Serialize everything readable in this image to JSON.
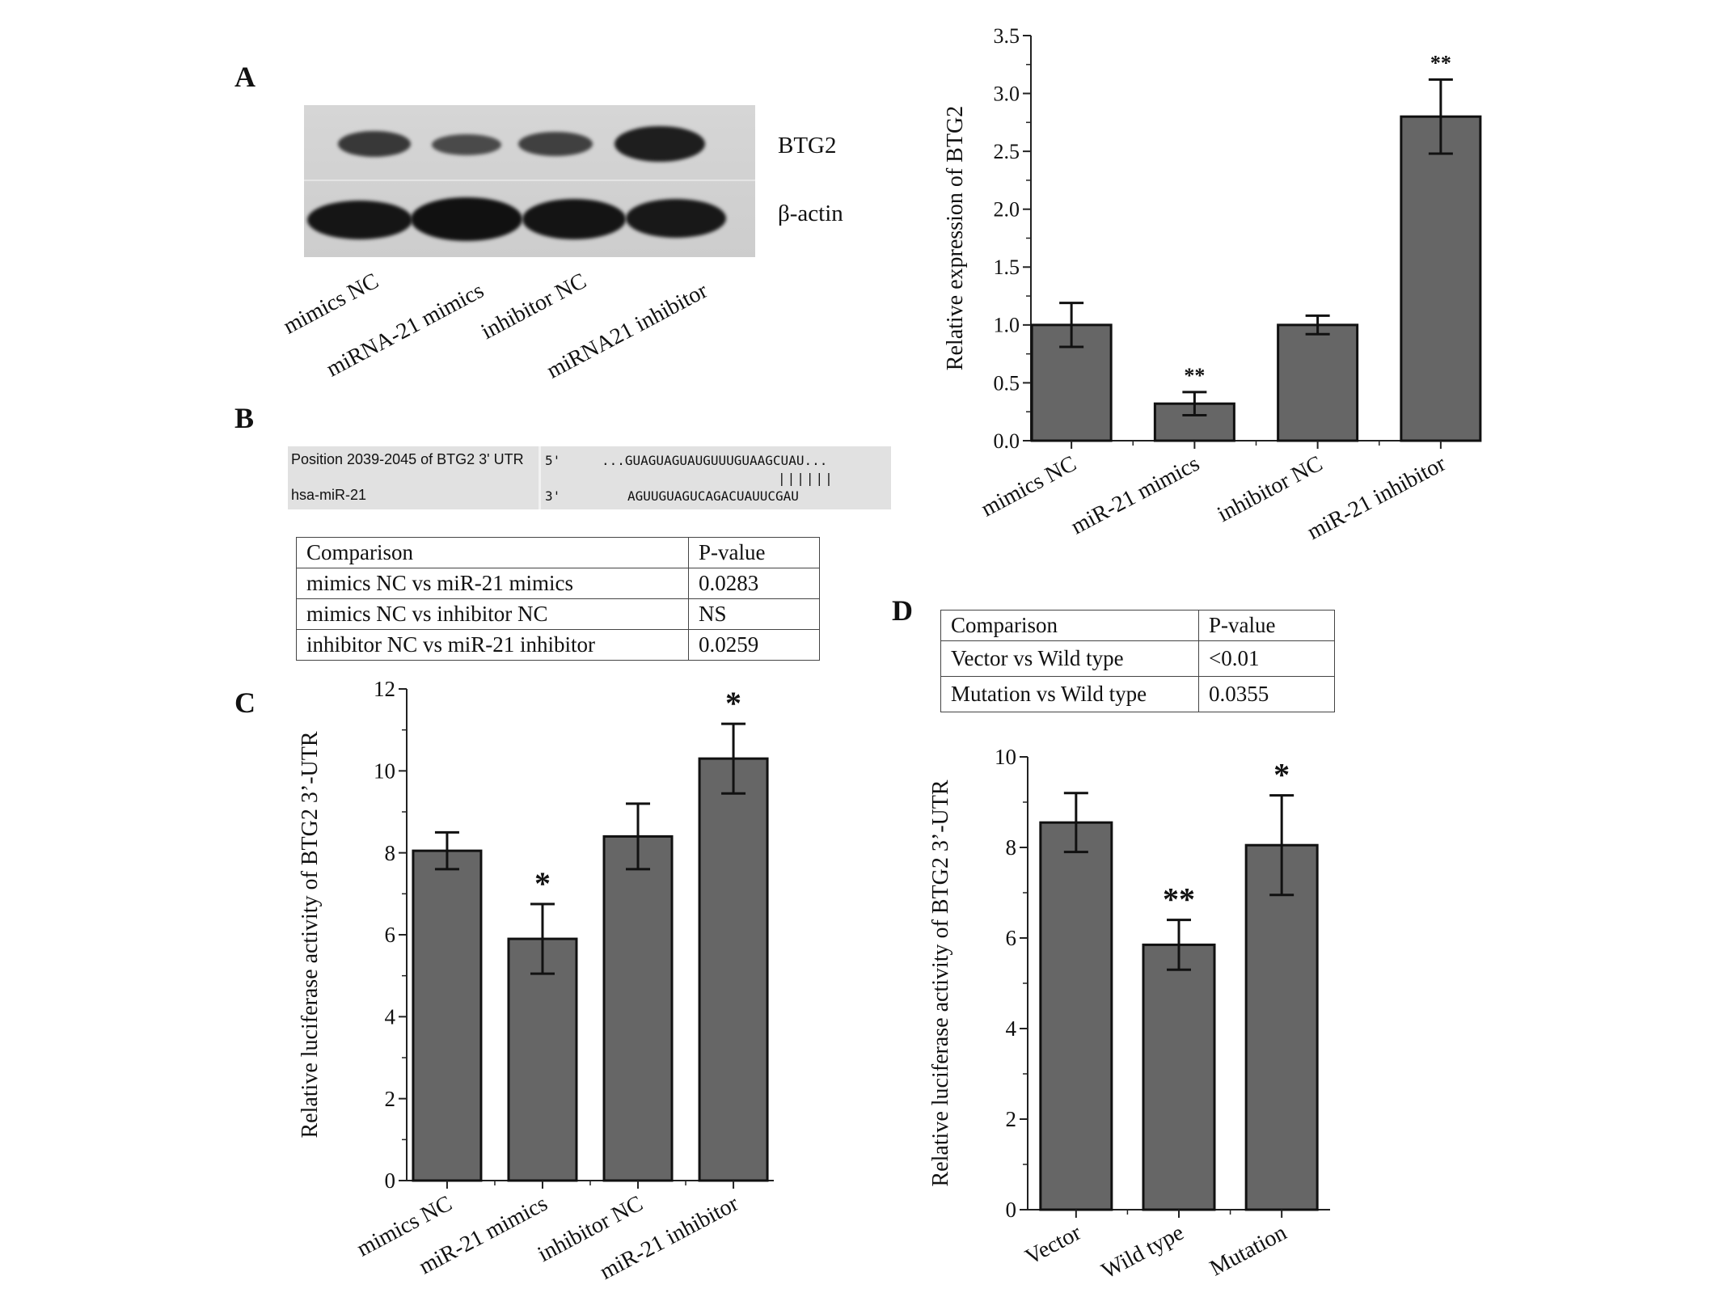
{
  "panels": {
    "a": "A",
    "b": "B",
    "c": "C",
    "d": "D"
  },
  "blot": {
    "proteins": [
      "BTG2",
      "β-actin"
    ],
    "lanes": [
      "mimics NC",
      "miRNA-21 mimics",
      "inhibitor NC",
      "miRNA21 inhibitor"
    ]
  },
  "sequence": {
    "target_label": "Position 2039-2045 of BTG2 3' UTR",
    "mirna_label": "hsa-miR-21",
    "target_end": "5'",
    "mirna_end": "3'",
    "target_seq": "...GUAGUAGUAUGUUUGUAAGCUAU...",
    "pairing": "||||||",
    "mirna_seq": "AGUUGUAGUCAGACUAUUCGAU"
  },
  "table_b": {
    "header": [
      "Comparison",
      "P-value"
    ],
    "rows": [
      [
        "mimics  NC vs miR-21 mimics",
        "0.0283"
      ],
      [
        "mimics  NC vs inhibitor NC",
        "NS"
      ],
      [
        "inhibitor NC vs miR-21 inhibitor",
        "0.0259"
      ]
    ]
  },
  "table_d": {
    "header": [
      "Comparison",
      "P-value"
    ],
    "rows": [
      [
        "Vector vs Wild type",
        "<0.01"
      ],
      [
        "Mutation vs Wild type",
        "0.0355"
      ]
    ]
  },
  "chart_data": [
    {
      "type": "bar",
      "panel": "A",
      "categories": [
        "mimics NC",
        "miR-21 mimics",
        "inhibitor NC",
        "miR-21 inhibitor"
      ],
      "values": [
        1.0,
        0.32,
        1.0,
        2.8
      ],
      "errors": [
        0.19,
        0.1,
        0.08,
        0.32
      ],
      "significance": [
        "",
        "**",
        "",
        "**"
      ],
      "ylabel": "Relative expression of  BTG2",
      "ylim": [
        0,
        3.5
      ],
      "yticks": [
        "0.0",
        "0.5",
        "1.0",
        "1.5",
        "2.0",
        "2.5",
        "3.0",
        "3.5"
      ],
      "grid": false,
      "bar_color": "#666666"
    },
    {
      "type": "bar",
      "panel": "C",
      "categories": [
        "mimics NC",
        "miR-21 mimics",
        "inhibitor NC",
        "miR-21 inhibitor"
      ],
      "values": [
        8.05,
        5.9,
        8.4,
        10.3
      ],
      "errors": [
        0.45,
        0.85,
        0.8,
        0.85
      ],
      "significance": [
        "",
        "*",
        "",
        "*"
      ],
      "ylabel": "Relative luciferase activity of BTG2 3’-UTR",
      "ylim": [
        0,
        12
      ],
      "yticks": [
        "0",
        "2",
        "4",
        "6",
        "8",
        "10",
        "12"
      ],
      "grid": false,
      "bar_color": "#666666"
    },
    {
      "type": "bar",
      "panel": "D",
      "categories": [
        "Vector",
        "Wild type",
        "Mutation"
      ],
      "values": [
        8.55,
        5.85,
        8.05
      ],
      "errors": [
        0.65,
        0.55,
        1.1
      ],
      "significance": [
        "",
        "**",
        "*"
      ],
      "ylabel": "Relative luciferase activity of BTG2 3’-UTR",
      "ylim": [
        0,
        10
      ],
      "yticks": [
        "0",
        "2",
        "4",
        "6",
        "8",
        "10"
      ],
      "grid": false,
      "bar_color": "#666666"
    }
  ]
}
